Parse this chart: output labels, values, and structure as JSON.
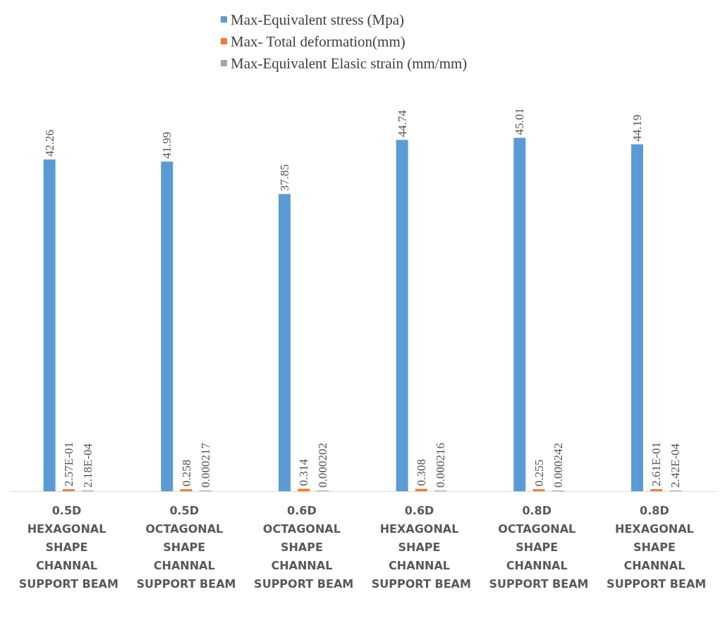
{
  "chart_data": {
    "type": "bar",
    "categories": [
      "0.5D HEXAGONAL SHAPE CHANNAL SUPPORT BEAM",
      "0.5D OCTAGONAL SHAPE CHANNAL SUPPORT BEAM",
      "0.6D OCTAGONAL SHAPE CHANNAL SUPPORT BEAM",
      "0.6D HEXAGONAL SHAPE CHANNAL SUPPORT BEAM",
      "0.8D OCTAGONAL SHAPE CHANNAL SUPPORT BEAM",
      "0.8D HEXAGONAL SHAPE CHANNAL SUPPORT BEAM"
    ],
    "series": [
      {
        "name": "Max-Equivalent stress (Mpa)",
        "color": "#5b9bd5",
        "values": [
          42.26,
          41.99,
          37.85,
          44.74,
          45.01,
          44.19
        ],
        "value_labels": [
          "42.26",
          "41.99",
          "37.85",
          "44.74",
          "45.01",
          "44.19"
        ]
      },
      {
        "name": "Max- Total deformation(mm)",
        "color": "#ed7d31",
        "values": [
          0.257,
          0.258,
          0.314,
          0.308,
          0.255,
          0.261
        ],
        "value_labels": [
          "2.57E-01",
          "0.258",
          "0.314",
          "0.308",
          "0.255",
          "2.61E-01"
        ]
      },
      {
        "name": "Max-Equivalent Elasic strain (mm/mm)",
        "color": "#a5a5a5",
        "values": [
          0.000218,
          0.000217,
          0.000202,
          0.000216,
          0.000242,
          0.000242
        ],
        "value_labels": [
          "2.18E-04",
          "0.000217",
          "0.000202",
          "0.000216",
          "0.000242",
          "2.42E-04"
        ]
      }
    ],
    "legend": "top"
  }
}
